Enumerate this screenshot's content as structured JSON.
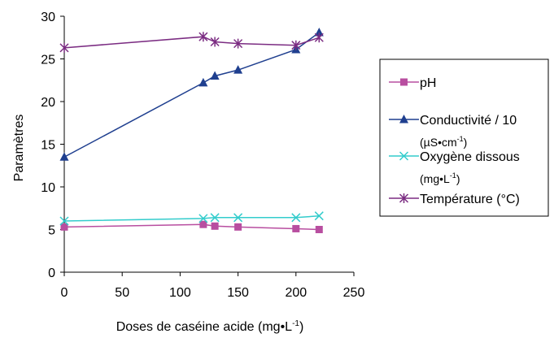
{
  "chart_data": {
    "type": "line",
    "x": [
      0,
      120,
      130,
      150,
      200,
      220
    ],
    "xlabel": "Doses de caséine acide (mg•L",
    "xlabel_sup": "-1",
    "xlabel_end": ")",
    "ylabel": "Paramètres",
    "xlim": [
      0,
      250
    ],
    "ylim": [
      0,
      30
    ],
    "xticks": [
      "0",
      "50",
      "100",
      "150",
      "200",
      "250"
    ],
    "yticks": [
      "0",
      "5",
      "10",
      "15",
      "20",
      "25",
      "30"
    ],
    "grid": false,
    "legend_position": "right",
    "series": [
      {
        "name": "pH",
        "values": [
          5.3,
          5.6,
          5.4,
          5.3,
          5.1,
          5.0
        ],
        "color": "#b84ea0",
        "marker": "square"
      },
      {
        "name": "Conductivité / 10",
        "name_line2": "(µS•cm",
        "name_line2_sup": "-1",
        "name_line2_end": ")",
        "values": [
          13.5,
          22.2,
          23.0,
          23.7,
          26.1,
          28.1
        ],
        "color": "#1f3f8f",
        "marker": "triangle"
      },
      {
        "name": "Oxygène dissous",
        "name_line2": "(mg•L",
        "name_line2_sup": "-1",
        "name_line2_end": ")",
        "values": [
          6.0,
          6.3,
          6.4,
          6.4,
          6.4,
          6.6
        ],
        "color": "#33cccc",
        "marker": "x"
      },
      {
        "name": "Température (°C)",
        "values": [
          26.3,
          27.6,
          27.0,
          26.8,
          26.6,
          27.5
        ],
        "color": "#7b2c82",
        "marker": "star"
      }
    ]
  }
}
